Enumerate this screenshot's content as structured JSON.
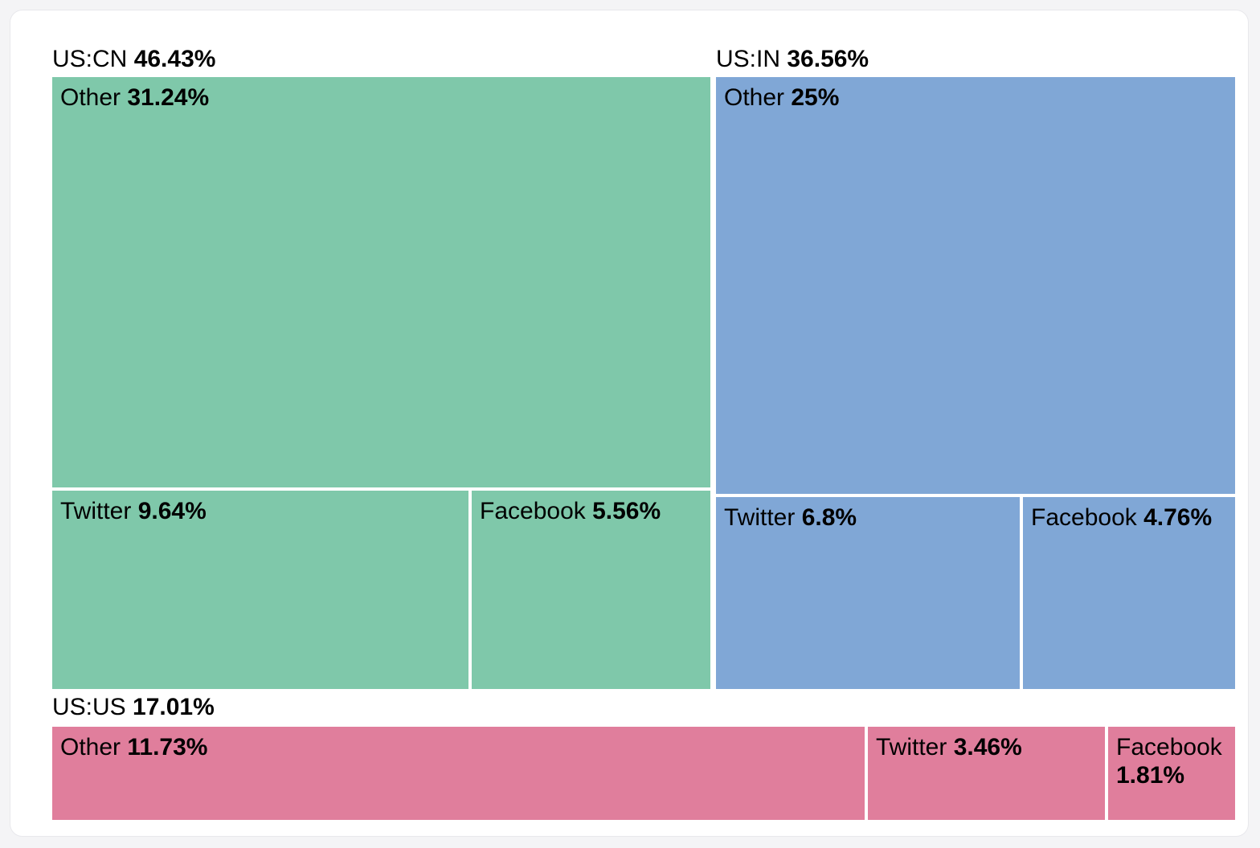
{
  "colors": {
    "page_bg": "#f4f4f6",
    "card_bg": "#ffffff",
    "card_border": "#e8e8ec",
    "text": "#000000",
    "group_us_cn": "#7fc8aa",
    "group_us_in": "#80a7d6",
    "group_us_us": "#e07e9c"
  },
  "chart_data": {
    "type": "treemap",
    "unit": "%",
    "legend_position": "none",
    "groups": [
      {
        "name": "US:CN",
        "share": 46.43,
        "share_label": "46.43%",
        "color": "#7fc8aa",
        "children": [
          {
            "name": "Other",
            "share": 31.24,
            "share_label": "31.24%"
          },
          {
            "name": "Twitter",
            "share": 9.64,
            "share_label": "9.64%"
          },
          {
            "name": "Facebook",
            "share": 5.56,
            "share_label": "5.56%"
          }
        ]
      },
      {
        "name": "US:IN",
        "share": 36.56,
        "share_label": "36.56%",
        "color": "#80a7d6",
        "children": [
          {
            "name": "Other",
            "share": 25,
            "share_label": "25%"
          },
          {
            "name": "Twitter",
            "share": 6.8,
            "share_label": "6.8%"
          },
          {
            "name": "Facebook",
            "share": 4.76,
            "share_label": "4.76%"
          }
        ]
      },
      {
        "name": "US:US",
        "share": 17.01,
        "share_label": "17.01%",
        "color": "#e07e9c",
        "children": [
          {
            "name": "Other",
            "share": 11.73,
            "share_label": "11.73%"
          },
          {
            "name": "Twitter",
            "share": 3.46,
            "share_label": "3.46%"
          },
          {
            "name": "Facebook",
            "share": 1.81,
            "share_label": "1.81%"
          }
        ]
      }
    ]
  }
}
